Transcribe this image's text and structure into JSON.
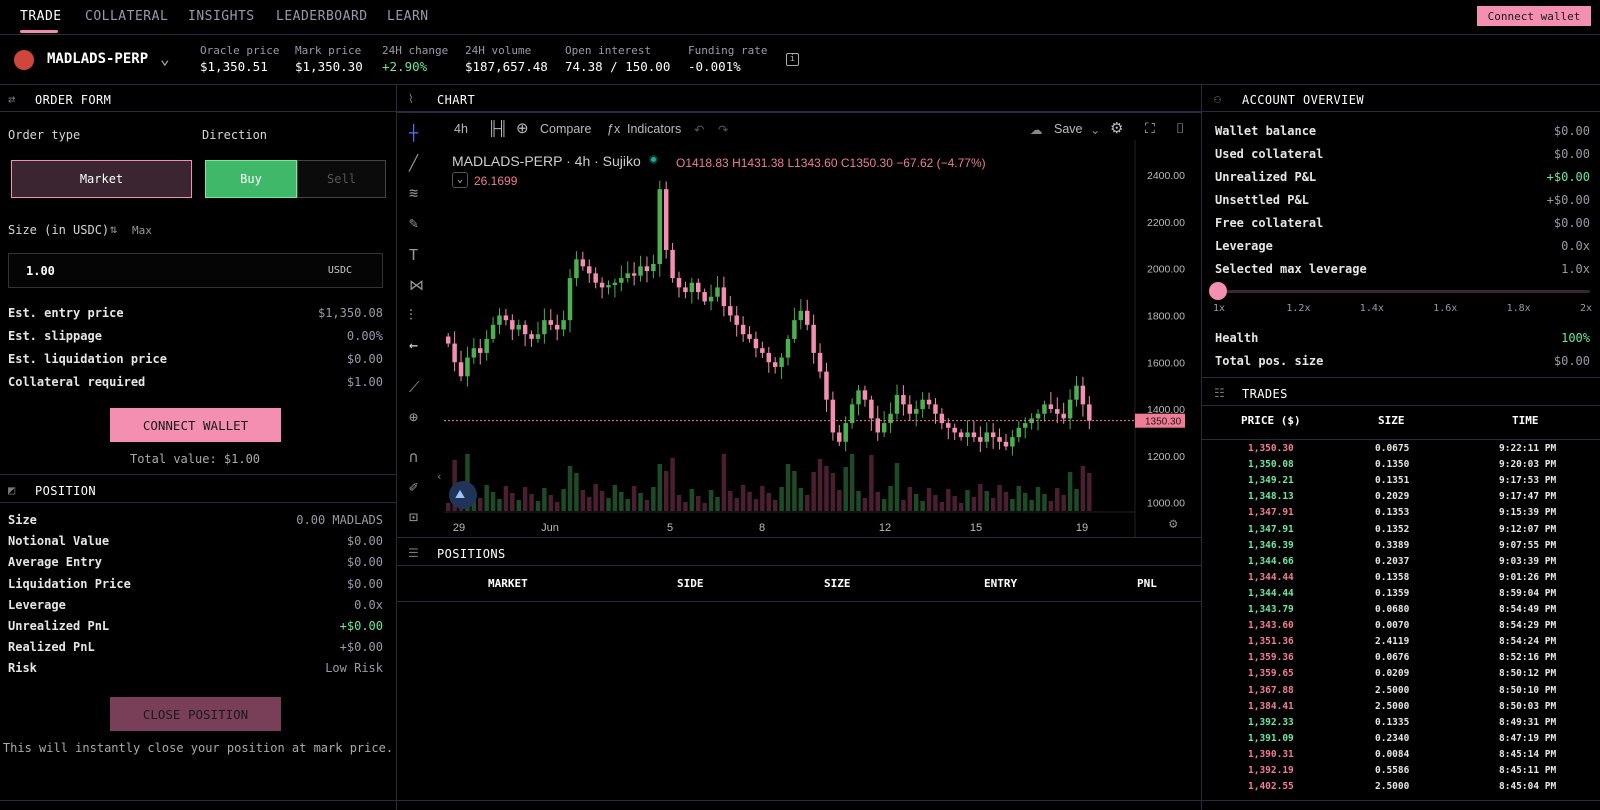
{
  "nav": {
    "tabs": [
      "TRADE",
      "COLLATERAL",
      "INSIGHTS",
      "LEADERBOARD",
      "LEARN"
    ],
    "connect_wallet": "Connect wallet"
  },
  "market": {
    "name": "MADLADS-PERP",
    "stats": [
      {
        "label": "Oracle price",
        "value": "$1,350.51",
        "color": "#ffffff"
      },
      {
        "label": "Mark price",
        "value": "$1,350.30",
        "color": "#ffffff"
      },
      {
        "label": "24H change",
        "value": "+2.90%",
        "color": "#6ee7a0"
      },
      {
        "label": "24H volume",
        "value": "$187,657.48",
        "color": "#ffffff"
      },
      {
        "label": "Open interest",
        "value": "74.38 / 150.00",
        "color": "#ffffff"
      },
      {
        "label": "Funding rate",
        "value": "-0.001%",
        "color": "#ffffff"
      }
    ]
  },
  "order_form": {
    "title": "ORDER FORM",
    "order_type_label": "Order type",
    "direction_label": "Direction",
    "market_btn": "Market",
    "buy_btn": "Buy",
    "sell_btn": "Sell",
    "size_label": "Size (in USDC)",
    "max_label": "Max",
    "size_value": "1.00",
    "size_unit": "USDC",
    "rows": [
      {
        "k": "Est. entry price",
        "v": "$1,350.08"
      },
      {
        "k": "Est. slippage",
        "v": "0.00%"
      },
      {
        "k": "Est. liquidation price",
        "v": "$0.00"
      },
      {
        "k": "Collateral required",
        "v": "$1.00"
      }
    ],
    "connect_btn": "CONNECT WALLET",
    "total_value": "Total value: $1.00"
  },
  "position": {
    "title": "POSITION",
    "rows": [
      {
        "k": "Size",
        "v": "0.00 MADLADS",
        "color": "#9a9aa8"
      },
      {
        "k": "Notional Value",
        "v": "$0.00",
        "color": "#9a9aa8"
      },
      {
        "k": "Average Entry",
        "v": "$0.00",
        "color": "#9a9aa8"
      },
      {
        "k": "Liquidation Price",
        "v": "$0.00",
        "color": "#9a9aa8"
      },
      {
        "k": "Leverage",
        "v": "0.0x",
        "color": "#9a9aa8"
      },
      {
        "k": "Unrealized PnL",
        "v": "+$0.00",
        "color": "#6ee7a0"
      },
      {
        "k": "Realized PnL",
        "v": "+$0.00",
        "color": "#9a9aa8"
      },
      {
        "k": "Risk",
        "v": "Low Risk",
        "color": "#9a9aa8"
      }
    ],
    "close_btn": "CLOSE POSITION",
    "close_note": "This will instantly close your position at mark price."
  },
  "chart": {
    "title": "CHART",
    "toolbar": {
      "interval": "4h",
      "compare": "Compare",
      "indicators": "Indicators",
      "save": "Save"
    },
    "legend": {
      "symbol": "MADLADS-PERP · 4h · Sujiko",
      "o": "O1418.83",
      "h": "H1431.38",
      "l": "L1343.60",
      "c": "C1350.30",
      "chg": "−67.62 (−4.77%)",
      "vol": "26.1699"
    },
    "last_price_label": "1350.30",
    "colors": {
      "up": "#4caf50",
      "down": "#f48fb1",
      "line": "#f07d95"
    }
  },
  "chart_data": {
    "type": "candlestick",
    "y_ticks": [
      "2400.00",
      "2200.00",
      "2000.00",
      "1800.00",
      "1600.00",
      "1400.00",
      "1200.00",
      "1000.00"
    ],
    "ylim": [
      960,
      2550
    ],
    "x_ticks": [
      "29",
      "Jun",
      "5",
      "8",
      "12",
      "15",
      "19"
    ],
    "last_price": 1350.3,
    "close_series": [
      1680,
      1600,
      1540,
      1620,
      1660,
      1640,
      1700,
      1760,
      1800,
      1780,
      1740,
      1760,
      1720,
      1700,
      1720,
      1780,
      1760,
      1740,
      1780,
      1960,
      2040,
      2010,
      1980,
      1940,
      1920,
      1930,
      1940,
      1960,
      1980,
      1970,
      2010,
      1990,
      2020,
      2340,
      2080,
      1960,
      1920,
      1900,
      1940,
      1900,
      1860,
      1880,
      1920,
      1840,
      1800,
      1760,
      1720,
      1700,
      1660,
      1640,
      1600,
      1580,
      1620,
      1700,
      1780,
      1820,
      1760,
      1640,
      1560,
      1440,
      1300,
      1260,
      1340,
      1420,
      1480,
      1440,
      1360,
      1300,
      1340,
      1380,
      1460,
      1420,
      1380,
      1400,
      1440,
      1420,
      1380,
      1340,
      1320,
      1300,
      1280,
      1300,
      1280,
      1260,
      1300,
      1280,
      1260,
      1240,
      1280,
      1320,
      1340,
      1360,
      1380,
      1420,
      1400,
      1380,
      1360,
      1440,
      1500,
      1420,
      1350
    ]
  },
  "positions": {
    "title": "POSITIONS",
    "columns": [
      "MARKET",
      "SIDE",
      "SIZE",
      "ENTRY",
      "PNL"
    ]
  },
  "account": {
    "title": "ACCOUNT OVERVIEW",
    "rows": [
      {
        "k": "Wallet balance",
        "v": "$0.00",
        "color": "#9a9aa8"
      },
      {
        "k": "Used collateral",
        "v": "$0.00",
        "color": "#9a9aa8"
      },
      {
        "k": "Unrealized P&L",
        "v": "+$0.00",
        "color": "#6ee7a0"
      },
      {
        "k": "Unsettled P&L",
        "v": "+$0.00",
        "color": "#9a9aa8"
      },
      {
        "k": "Free collateral",
        "v": "$0.00",
        "color": "#9a9aa8"
      },
      {
        "k": "Leverage",
        "v": "0.0x",
        "color": "#9a9aa8"
      },
      {
        "k": "Selected max leverage",
        "v": "1.0x",
        "color": "#9a9aa8"
      }
    ],
    "slider_ticks": [
      "1x",
      "1.2x",
      "1.4x",
      "1.6x",
      "1.8x",
      "2x"
    ],
    "health_label": "Health",
    "health_value": "100%",
    "total_label": "Total pos. size",
    "total_value": "$0.00"
  },
  "trades": {
    "title": "TRADES",
    "columns": [
      "PRICE ($)",
      "SIZE",
      "TIME"
    ],
    "rows": [
      {
        "p": "1,350.30",
        "s": "0.0675",
        "t": "9:22:11 PM",
        "side": "sell"
      },
      {
        "p": "1,350.08",
        "s": "0.1350",
        "t": "9:20:03 PM",
        "side": "buy"
      },
      {
        "p": "1,349.21",
        "s": "0.1351",
        "t": "9:17:53 PM",
        "side": "buy"
      },
      {
        "p": "1,348.13",
        "s": "0.2029",
        "t": "9:17:47 PM",
        "side": "buy"
      },
      {
        "p": "1,347.91",
        "s": "0.1353",
        "t": "9:15:39 PM",
        "side": "sell"
      },
      {
        "p": "1,347.91",
        "s": "0.1352",
        "t": "9:12:07 PM",
        "side": "buy"
      },
      {
        "p": "1,346.39",
        "s": "0.3389",
        "t": "9:07:55 PM",
        "side": "buy"
      },
      {
        "p": "1,344.66",
        "s": "0.2037",
        "t": "9:03:39 PM",
        "side": "buy"
      },
      {
        "p": "1,344.44",
        "s": "0.1358",
        "t": "9:01:26 PM",
        "side": "sell"
      },
      {
        "p": "1,344.44",
        "s": "0.1359",
        "t": "8:59:04 PM",
        "side": "buy"
      },
      {
        "p": "1,343.79",
        "s": "0.0680",
        "t": "8:54:49 PM",
        "side": "buy"
      },
      {
        "p": "1,343.60",
        "s": "0.0070",
        "t": "8:54:29 PM",
        "side": "sell"
      },
      {
        "p": "1,351.36",
        "s": "2.4119",
        "t": "8:54:24 PM",
        "side": "sell"
      },
      {
        "p": "1,359.36",
        "s": "0.0676",
        "t": "8:52:16 PM",
        "side": "sell"
      },
      {
        "p": "1,359.65",
        "s": "0.0209",
        "t": "8:50:12 PM",
        "side": "sell"
      },
      {
        "p": "1,367.88",
        "s": "2.5000",
        "t": "8:50:10 PM",
        "side": "sell"
      },
      {
        "p": "1,384.41",
        "s": "2.5000",
        "t": "8:50:03 PM",
        "side": "sell"
      },
      {
        "p": "1,392.33",
        "s": "0.1335",
        "t": "8:49:31 PM",
        "side": "buy"
      },
      {
        "p": "1,391.09",
        "s": "0.2340",
        "t": "8:47:19 PM",
        "side": "buy"
      },
      {
        "p": "1,390.31",
        "s": "0.0084",
        "t": "8:45:14 PM",
        "side": "sell"
      },
      {
        "p": "1,392.19",
        "s": "0.5586",
        "t": "8:45:11 PM",
        "side": "sell"
      },
      {
        "p": "1,402.55",
        "s": "2.5000",
        "t": "8:45:04 PM",
        "side": "sell"
      }
    ]
  }
}
